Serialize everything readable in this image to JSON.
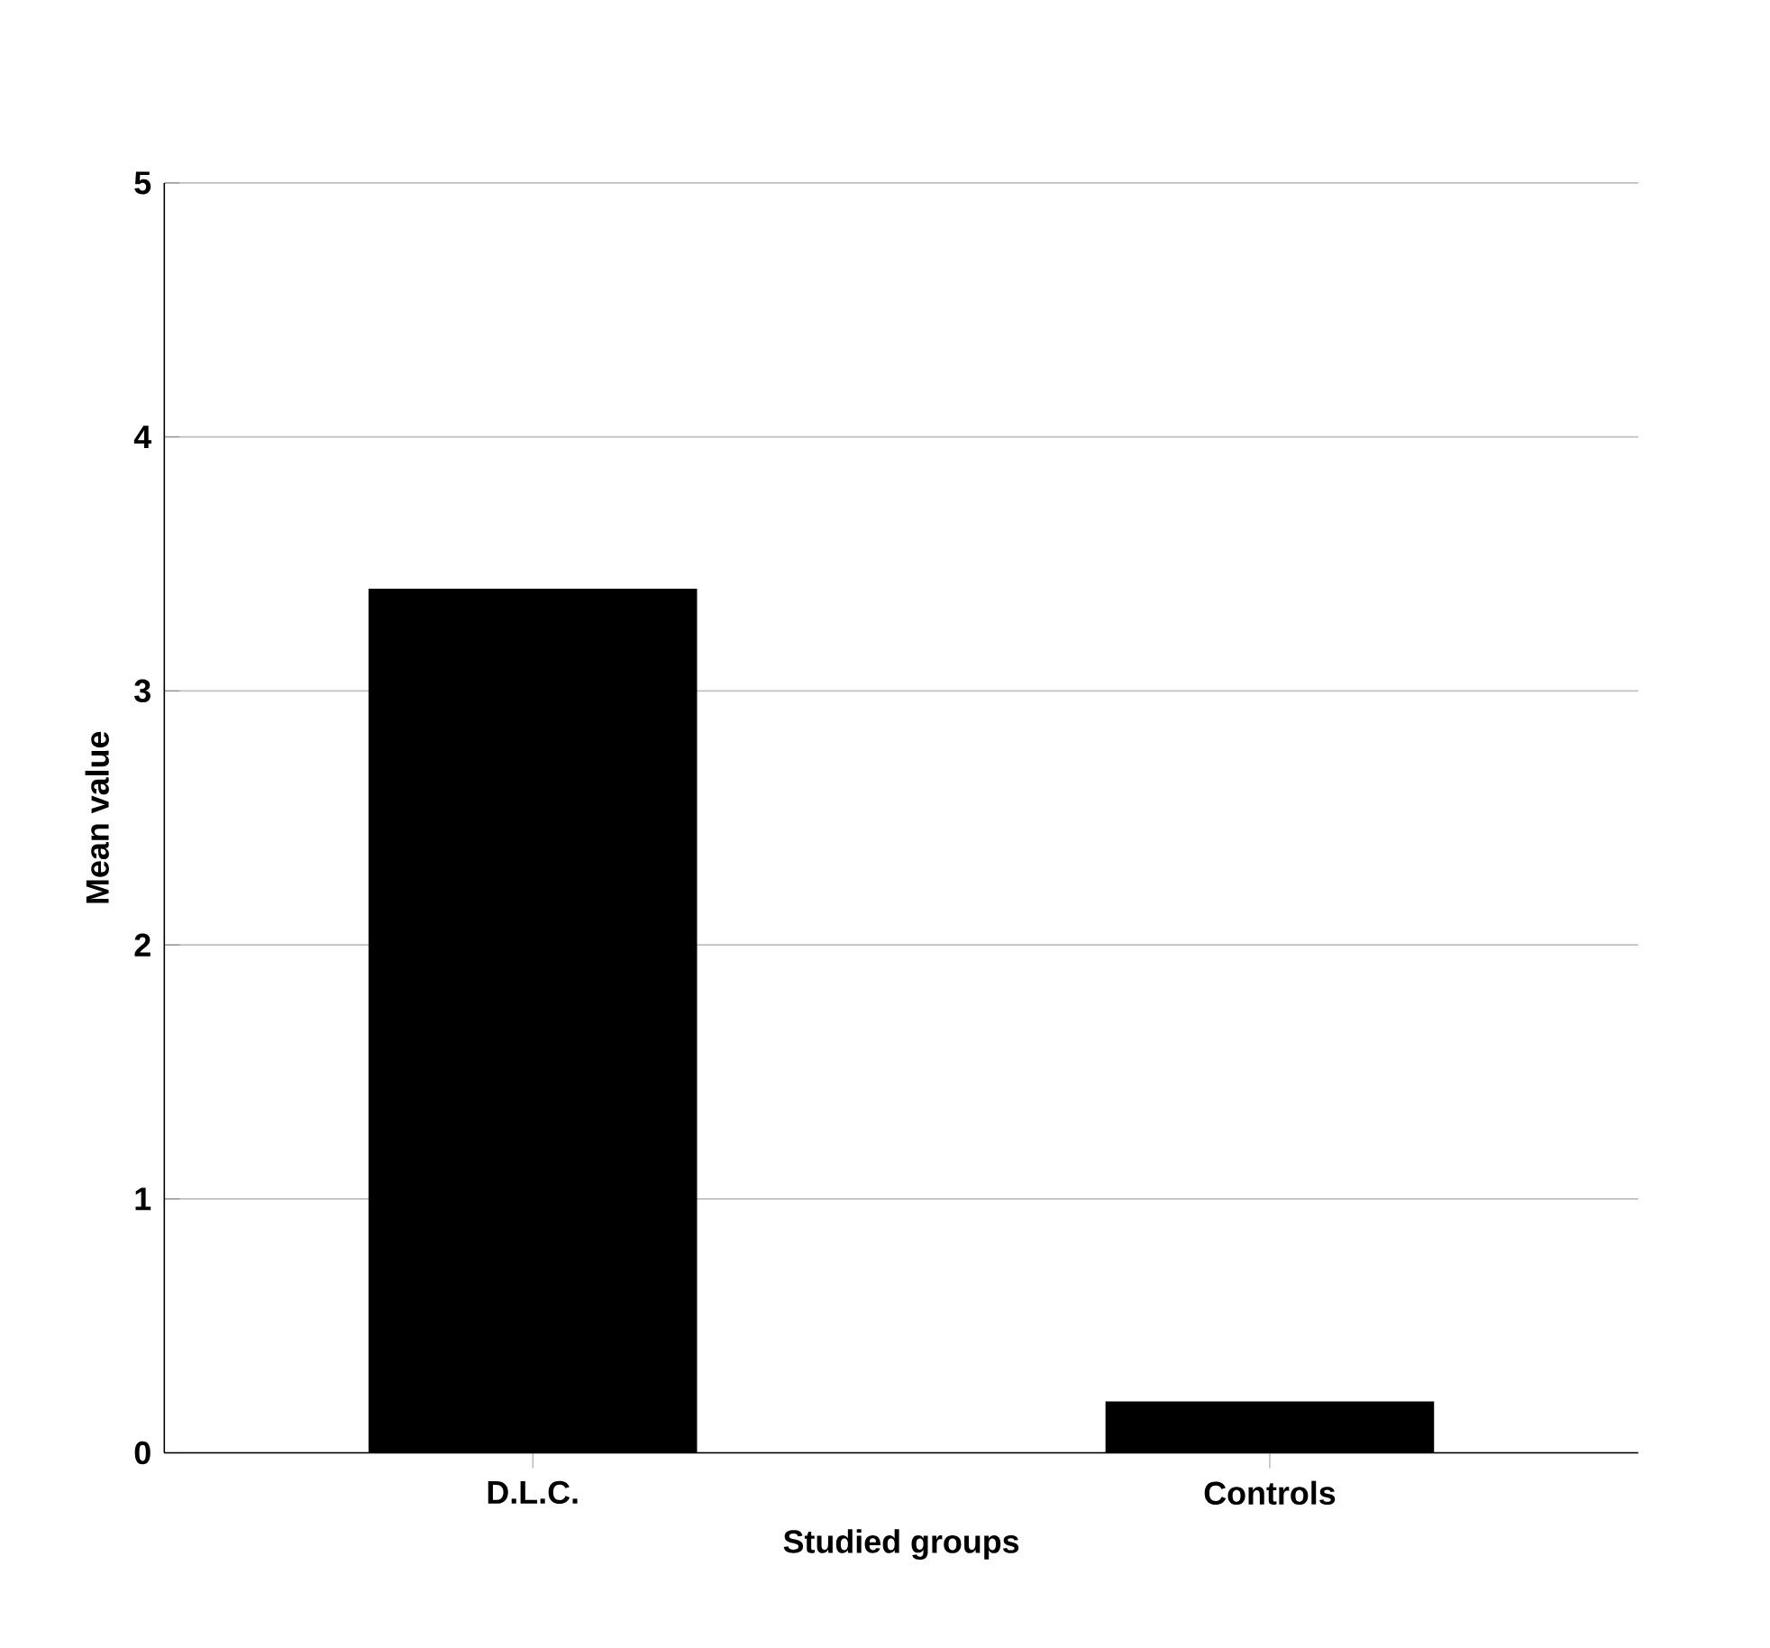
{
  "chart_data": {
    "type": "bar",
    "xlabel": "Studied groups",
    "ylabel": "Mean value",
    "categories": [
      "D.L.C.",
      "Controls"
    ],
    "values": [
      3.4,
      0.2
    ],
    "color": "#000000",
    "ylim": [
      0,
      5
    ],
    "yticks": [
      0,
      1,
      2,
      3,
      4,
      5
    ],
    "grid": "y"
  }
}
